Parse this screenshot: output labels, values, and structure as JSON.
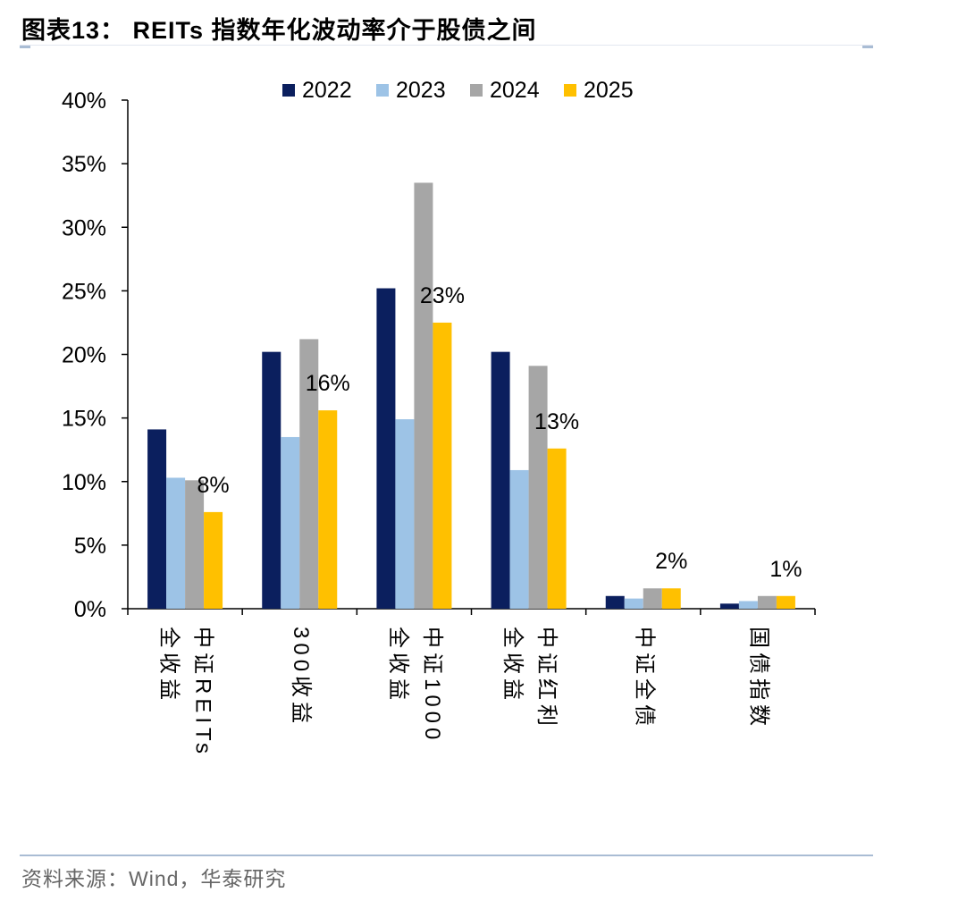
{
  "header": {
    "title": "图表13：   REITs 指数年化波动率介于股债之间"
  },
  "footer": {
    "source": "资料来源：Wind，华泰研究"
  },
  "colors": {
    "2022": "#0b1f5e",
    "2023": "#9dc3e6",
    "2024": "#a6a6a6",
    "2025": "#ffc000"
  },
  "chart_data": {
    "type": "bar",
    "title": "",
    "xlabel": "",
    "ylabel": "",
    "ylim": [
      0,
      40
    ],
    "yticks": [
      "0%",
      "5%",
      "10%",
      "15%",
      "20%",
      "25%",
      "30%",
      "35%",
      "40%"
    ],
    "legend_position": "top",
    "categories": [
      "中证REITs全收益",
      "300收益",
      "中证1000全收益",
      "中证红利全收益",
      "中证全债",
      "国债指数"
    ],
    "category_label_columns": [
      [
        "全收益",
        "中证REITs"
      ],
      [
        "300收益"
      ],
      [
        "全收益",
        "中证1000"
      ],
      [
        "全收益",
        "中证红利"
      ],
      [
        "中证全债"
      ],
      [
        "国债指数"
      ]
    ],
    "series": [
      {
        "name": "2022",
        "values": [
          14.1,
          20.2,
          25.2,
          20.2,
          1.0,
          0.4
        ]
      },
      {
        "name": "2023",
        "values": [
          10.3,
          13.5,
          14.9,
          10.9,
          0.8,
          0.6
        ]
      },
      {
        "name": "2024",
        "values": [
          10.1,
          21.2,
          33.5,
          19.1,
          1.6,
          1.0
        ]
      },
      {
        "name": "2025",
        "values": [
          7.6,
          15.6,
          22.5,
          12.6,
          1.6,
          1.0
        ]
      }
    ],
    "data_labels": [
      "8%",
      "16%",
      "23%",
      "13%",
      "2%",
      "1%"
    ]
  }
}
